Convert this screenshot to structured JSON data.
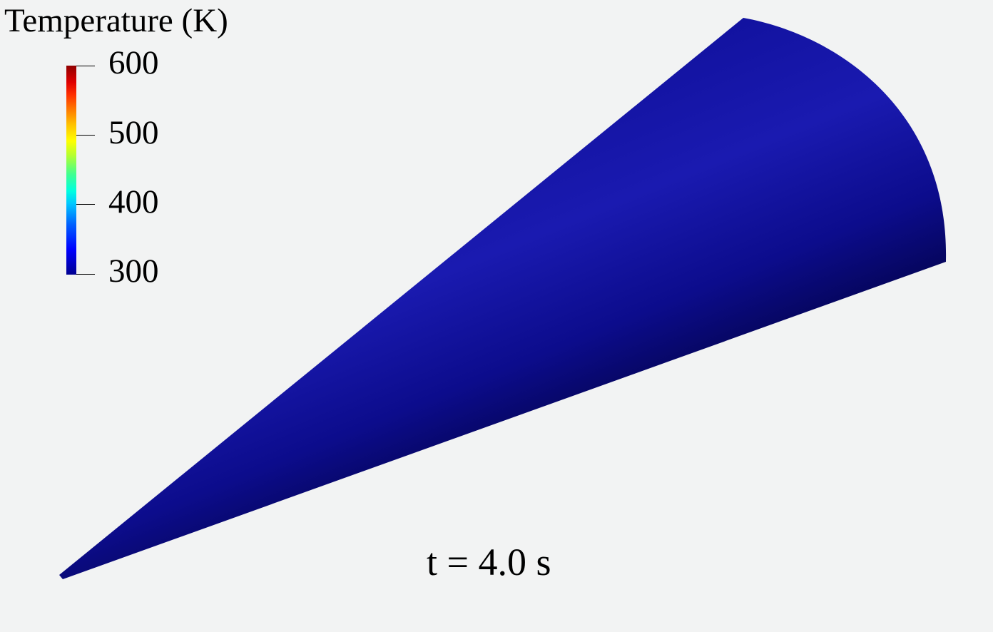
{
  "legend": {
    "title": "Temperature (K)",
    "ticks": [
      "600",
      "500",
      "400",
      "300"
    ],
    "range": [
      300,
      600
    ],
    "colormap": "jet",
    "colors": [
      "#000090",
      "#0000ff",
      "#00c8ff",
      "#ffff00",
      "#ff7000",
      "#e00000",
      "#900000"
    ]
  },
  "time_label": "t = 4.0 s",
  "surface": {
    "shape": "cone",
    "colors": {
      "light": "#1a1ab0",
      "mid": "#0c0c9a",
      "dark": "#05055a"
    }
  }
}
